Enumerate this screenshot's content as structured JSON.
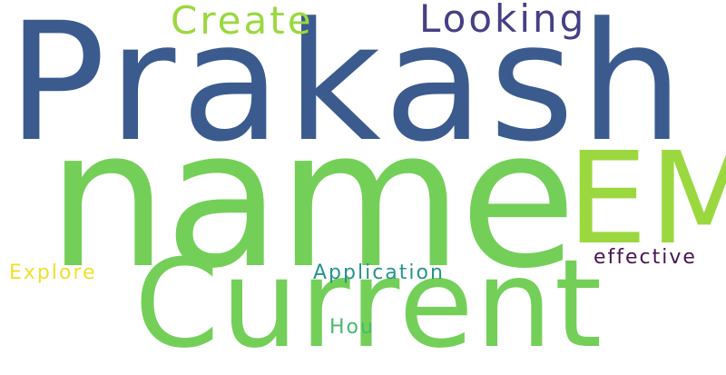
{
  "words": [
    {
      "text": "Prakash",
      "color": "#3b5b8f"
    },
    {
      "text": "name",
      "color": "#74cf59"
    },
    {
      "text": "Current",
      "color": "#74cf59"
    },
    {
      "text": "EM",
      "color": "#9bd83f"
    },
    {
      "text": "Create",
      "color": "#9bd83f"
    },
    {
      "text": "Looking",
      "color": "#453f86"
    },
    {
      "text": "Explore",
      "color": "#f0e02c"
    },
    {
      "text": "Application",
      "color": "#26938c"
    },
    {
      "text": "effective",
      "color": "#471552"
    },
    {
      "text": "Hou",
      "color": "#49ba6e"
    }
  ]
}
